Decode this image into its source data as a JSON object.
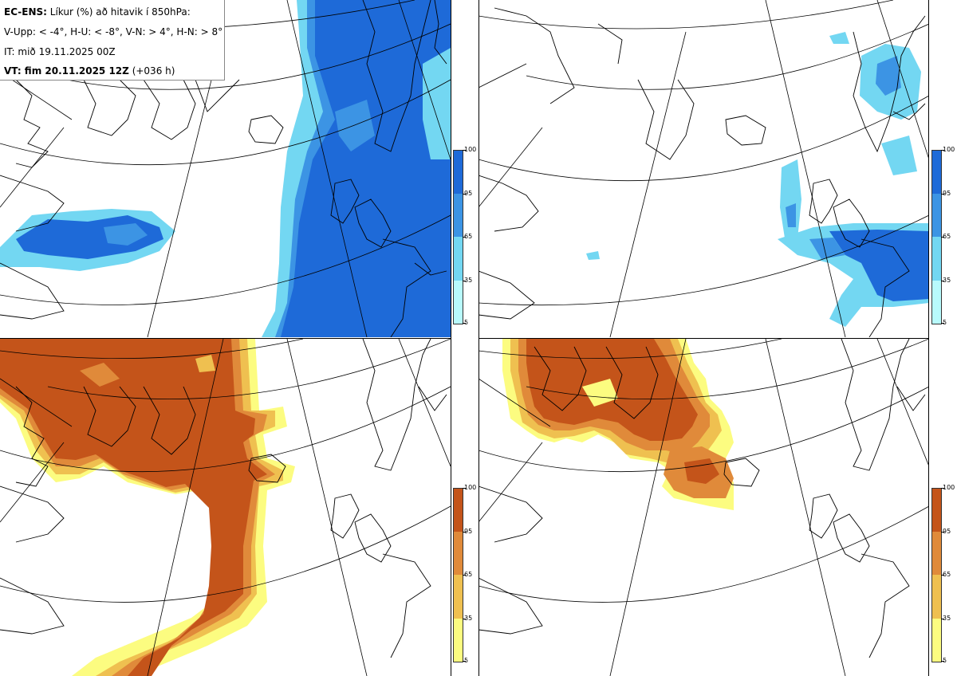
{
  "header": {
    "line1_bold": "EC-ENS:",
    "line1_text": " Líkur (%) að hitavik í 850hPa:",
    "line2": "V-Upp: < -4°, H-U: < -8°, V-N: > 4°, H-N: > 8°",
    "line3": "IT: mið 19.11.2025 00Z",
    "line4_bold": "VT: fim 20.11.2025 12Z",
    "line4_text": " (+036 h)"
  },
  "colorbar": {
    "labels": [
      "100",
      "95",
      "65",
      "35",
      "5"
    ],
    "cold_colors": [
      "#1e6ad8",
      "#3c94e4",
      "#73d7f2",
      "#b8fafc"
    ],
    "warm_colors": [
      "#c4541a",
      "#e08a3a",
      "#efc050",
      "#fcfc80"
    ]
  },
  "panels": [
    {
      "name": "V-Upp",
      "scheme": "cold"
    },
    {
      "name": "H-U",
      "scheme": "cold"
    },
    {
      "name": "V-N",
      "scheme": "warm"
    },
    {
      "name": "H-N",
      "scheme": "warm"
    }
  ]
}
